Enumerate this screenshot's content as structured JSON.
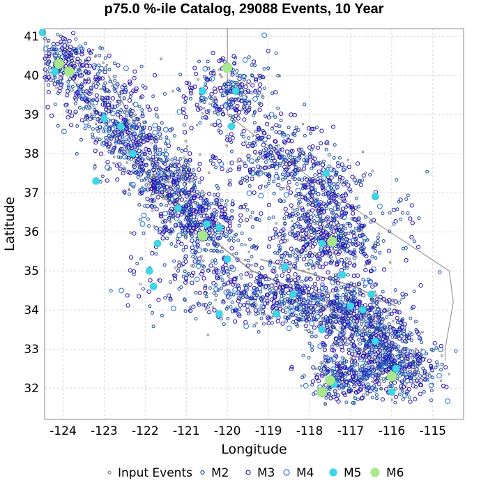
{
  "chart_data": {
    "type": "scatter",
    "title": "p75.0 %-ile Catalog, 29088 Events, 10 Year",
    "xlabel": "Longitude",
    "ylabel": "Latitude",
    "xlim": [
      -124.45,
      -114.25
    ],
    "ylim": [
      31.2,
      41.2
    ],
    "xticks": [
      "-124",
      "-123",
      "-122",
      "-121",
      "-120",
      "-119",
      "-118",
      "-117",
      "-116",
      "-115"
    ],
    "yticks": [
      "32",
      "33",
      "34",
      "35",
      "36",
      "37",
      "38",
      "39",
      "40",
      "41"
    ],
    "grid": true,
    "legend_position": "bottom",
    "series": [
      {
        "name": "Input Events",
        "color": "#888888",
        "marker": "small-open-circle"
      },
      {
        "name": "M2",
        "color": "#1a4fa0",
        "marker": "open-circle"
      },
      {
        "name": "M3",
        "color": "#2a12b8",
        "marker": "open-circle"
      },
      {
        "name": "M4",
        "color": "#1e6fe0",
        "marker": "open-circle"
      },
      {
        "name": "M5",
        "color": "#3ad8e8",
        "marker": "filled-circle"
      },
      {
        "name": "M6",
        "color": "#a8e88a",
        "marker": "filled-circle"
      }
    ],
    "notable_events": {
      "M6": [
        [
          -124.1,
          40.3
        ],
        [
          -123.85,
          40.1
        ],
        [
          -120.0,
          40.2
        ],
        [
          -117.45,
          35.75
        ],
        [
          -117.5,
          32.2
        ],
        [
          -117.7,
          31.9
        ],
        [
          -116.0,
          32.3
        ],
        [
          -120.6,
          35.9
        ]
      ],
      "M5": [
        [
          -124.5,
          41.1
        ],
        [
          -124.2,
          40.1
        ],
        [
          -123.0,
          38.9
        ],
        [
          -122.6,
          38.7
        ],
        [
          -122.3,
          38.0
        ],
        [
          -123.2,
          37.3
        ],
        [
          -121.2,
          36.6
        ],
        [
          -120.5,
          36.2
        ],
        [
          -120.2,
          36.1
        ],
        [
          -120.6,
          39.6
        ],
        [
          -119.8,
          39.6
        ],
        [
          -119.9,
          38.7
        ],
        [
          -121.7,
          35.7
        ],
        [
          -120.0,
          35.3
        ],
        [
          -121.9,
          35.0
        ],
        [
          -121.8,
          34.6
        ],
        [
          -118.8,
          33.9
        ],
        [
          -118.4,
          34.4
        ],
        [
          -117.0,
          34.1
        ],
        [
          -116.7,
          34.0
        ],
        [
          -116.5,
          34.4
        ],
        [
          -116.4,
          33.2
        ],
        [
          -117.7,
          33.5
        ],
        [
          -117.4,
          32.1
        ],
        [
          -116.0,
          31.9
        ],
        [
          -115.9,
          32.5
        ],
        [
          -117.6,
          37.5
        ],
        [
          -116.4,
          36.9
        ],
        [
          -118.6,
          35.1
        ],
        [
          -117.7,
          35.7
        ],
        [
          -117.2,
          34.9
        ],
        [
          -120.2,
          33.9
        ]
      ]
    }
  }
}
